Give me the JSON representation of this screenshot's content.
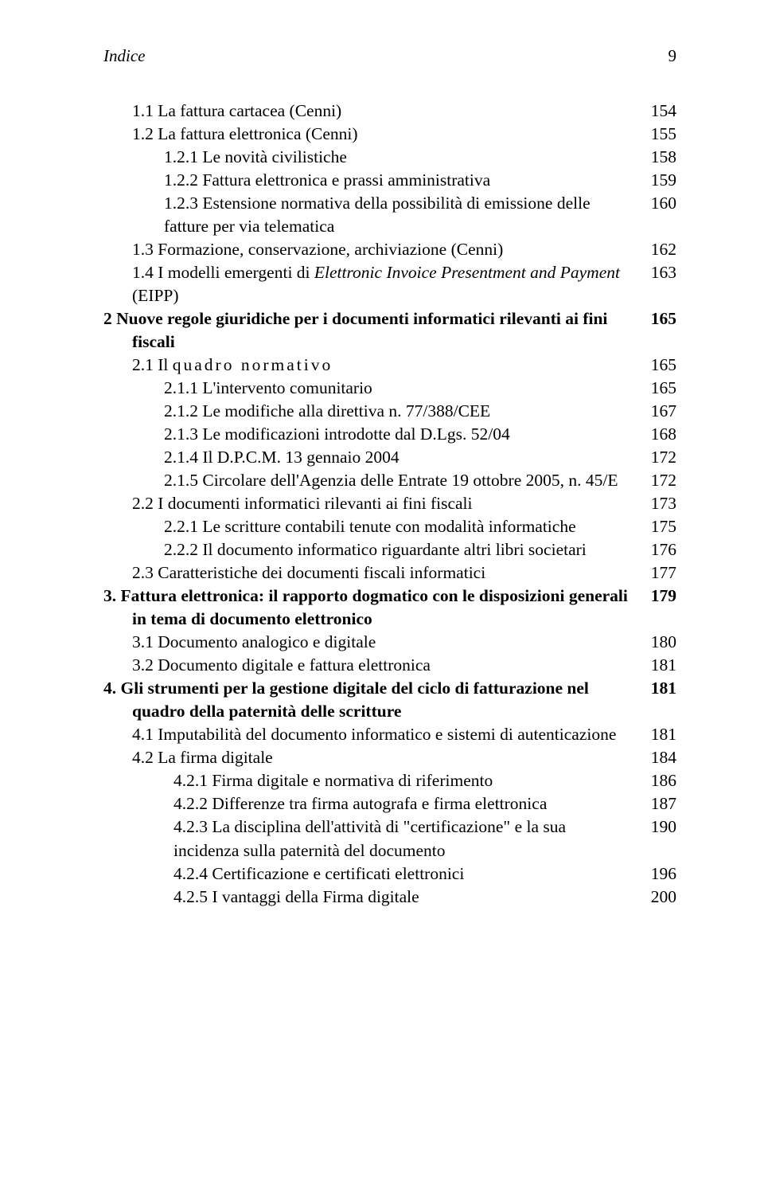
{
  "running_head": {
    "title": "Indice",
    "page": "9"
  },
  "lines": [
    {
      "cls": "ind1",
      "text": "1.1 La fattura cartacea (Cenni)",
      "pg": "154"
    },
    {
      "cls": "ind1",
      "text": "1.2 La fattura elettronica (Cenni)",
      "pg": "155"
    },
    {
      "cls": "ind2",
      "text": "1.2.1 Le novità civilistiche",
      "pg": "158"
    },
    {
      "cls": "ind2",
      "text": "1.2.2 Fattura elettronica e prassi amministrativa",
      "pg": "159"
    },
    {
      "cls": "ind2",
      "text": "1.2.3 Estensione normativa della possibilità di emissione delle fatture per via telematica",
      "pg": "160"
    },
    {
      "cls": "ind1",
      "text": "1.3 Formazione, conservazione, archiviazione (Cenni)",
      "pg": "162"
    },
    {
      "cls": "ind1",
      "html": "1.4 I modelli emergenti di <span class=\"italic\">Elettronic Invoice Presentment and Payment</span> (EIPP)",
      "pg": "163"
    },
    {
      "cls": "bold hang",
      "text": "2 Nuove regole giuridiche per i documenti informatici rilevanti ai fini fiscali",
      "pg": "165"
    },
    {
      "cls": "ind1",
      "html": "2.1 Il <span class=\"spaced\">quadro normativo</span>",
      "pg": "165"
    },
    {
      "cls": "ind2",
      "text": "2.1.1  L'intervento comunitario",
      "pg": "165"
    },
    {
      "cls": "ind2",
      "text": "2.1.2 Le modifiche alla direttiva n. 77/388/CEE",
      "pg": "167"
    },
    {
      "cls": "ind2",
      "text": "2.1.3 Le modificazioni introdotte dal D.Lgs. 52/04",
      "pg": "168"
    },
    {
      "cls": "ind2",
      "text": "2.1.4 Il D.P.C.M. 13 gennaio 2004",
      "pg": "172"
    },
    {
      "cls": "ind2",
      "text": "2.1.5 Circolare dell'Agenzia delle Entrate 19 ottobre 2005, n. 45/E",
      "pg": "172"
    },
    {
      "cls": "ind1",
      "text": "2.2 I documenti informatici rilevanti ai fini fiscali",
      "pg": "173"
    },
    {
      "cls": "ind2",
      "text": "2.2.1 Le scritture contabili tenute con modalità informatiche",
      "pg": "175"
    },
    {
      "cls": "ind2",
      "text": "2.2.2 Il documento informatico riguardante altri libri societari",
      "pg": "176"
    },
    {
      "cls": "ind1",
      "text": "2.3 Caratteristiche dei documenti fiscali informatici",
      "pg": "177"
    },
    {
      "cls": "bold hang",
      "text": "3. Fattura elettronica: il rapporto dogmatico con le disposizioni generali in tema di documento elettronico",
      "pg": "179"
    },
    {
      "cls": "ind1",
      "text": "3.1  Documento analogico e digitale",
      "pg": "180"
    },
    {
      "cls": "ind1",
      "text": "3.2  Documento digitale e fattura elettronica",
      "pg": "181"
    },
    {
      "cls": "bold hang",
      "text": "4. Gli strumenti per la gestione digitale del ciclo di fatturazione nel quadro della paternità delle scritture",
      "pg": "181"
    },
    {
      "cls": "ind1",
      "text": "4.1 Imputabilità del documento informatico e sistemi di autenticazione",
      "pg": "181"
    },
    {
      "cls": "ind1",
      "text": "4.2 La firma digitale",
      "pg": "184"
    },
    {
      "cls": "ind3",
      "text": "4.2.1 Firma digitale e normativa di riferimento",
      "pg": "186"
    },
    {
      "cls": "ind3",
      "text": "4.2.2 Differenze tra firma autografa e firma elettronica",
      "pg": "187"
    },
    {
      "cls": "ind3",
      "text": "4.2.3 La disciplina dell'attività di \"certificazione\" e  la sua incidenza sulla paternità del documento",
      "pg": "190"
    },
    {
      "cls": "ind3",
      "text": "4.2.4 Certificazione e certificati elettronici",
      "pg": "196"
    },
    {
      "cls": "ind3",
      "text": "4.2.5 I vantaggi della Firma digitale",
      "pg": "200"
    }
  ]
}
